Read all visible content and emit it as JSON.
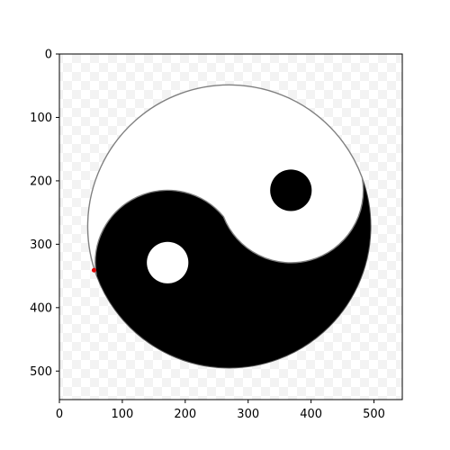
{
  "chart_data": {
    "type": "image",
    "subject": "yin-yang symbol",
    "background": "checkerboard transparency pattern",
    "x_ticks": [
      0,
      100,
      200,
      300,
      400,
      500
    ],
    "y_ticks": [
      0,
      100,
      200,
      300,
      400,
      500
    ],
    "xlim": [
      0,
      545
    ],
    "ylim": [
      545,
      0
    ],
    "y_axis_inverted": true,
    "title": "",
    "xlabel": "",
    "ylabel": "",
    "grid": false,
    "symbol": {
      "center": [
        270,
        272
      ],
      "radius": 225,
      "left_disc_center": [
        172,
        329
      ],
      "left_disc_radius": 115,
      "right_disc_center": [
        368,
        215
      ],
      "right_disc_radius": 115,
      "dot_radius": 33
    },
    "marker": {
      "x": 55,
      "y": 341,
      "color": "#e00000"
    },
    "colors": {
      "dark": "#000000",
      "light": "#ffffff",
      "outline": "#808080"
    }
  }
}
